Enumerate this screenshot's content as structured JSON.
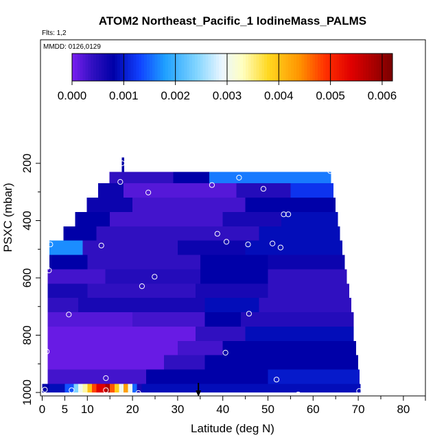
{
  "chart_data": {
    "type": "heatmap",
    "title": "ATOM2 Northeast_Pacific_1 IodineMass_PALMS",
    "annotations": [
      "Flts: 1,2",
      "MMDD: 0126,0129"
    ],
    "xlabel": "Latitude (deg N)",
    "ylabel": "PSXC (mbar)",
    "xlim": [
      0,
      85
    ],
    "ylim": [
      1000,
      80
    ],
    "x_ticks": [
      0,
      5,
      10,
      20,
      30,
      40,
      50,
      60,
      70,
      80
    ],
    "y_ticks": [
      200,
      400,
      600,
      800,
      1000
    ],
    "colorbar": {
      "range": [
        0,
        0.0062
      ],
      "ticks": [
        "0.000",
        "0.001",
        "0.002",
        "0.003",
        "0.004",
        "0.005",
        "0.006"
      ],
      "tick_values": [
        0,
        0.001,
        0.002,
        0.003,
        0.004,
        0.005,
        0.006
      ],
      "stops": [
        {
          "v": 0.0,
          "c": "#7a1ff0"
        },
        {
          "v": 0.0004,
          "c": "#3010c0"
        },
        {
          "v": 0.0008,
          "c": "#0000a8"
        },
        {
          "v": 0.0013,
          "c": "#1040ff"
        },
        {
          "v": 0.0018,
          "c": "#1ea0ff"
        },
        {
          "v": 0.0024,
          "c": "#80d4ff"
        },
        {
          "v": 0.0029,
          "c": "#eaf6ff"
        },
        {
          "v": 0.0033,
          "c": "#ffffc0"
        },
        {
          "v": 0.0038,
          "c": "#ffd820"
        },
        {
          "v": 0.0044,
          "c": "#ff9400"
        },
        {
          "v": 0.0049,
          "c": "#ff3000"
        },
        {
          "v": 0.0054,
          "c": "#e00000"
        },
        {
          "v": 0.0062,
          "c": "#7a0000"
        }
      ]
    },
    "bands": [
      {
        "p": [
          230,
          180
        ],
        "segs": [
          [
            17.6,
            18.2,
            0.0008
          ]
        ]
      },
      {
        "p": [
          270,
          230
        ],
        "segs": [
          [
            14.9,
            29,
            0.0004
          ],
          [
            29,
            37,
            0.0008
          ],
          [
            37,
            64,
            0.0016
          ]
        ]
      },
      {
        "p": [
          320,
          270
        ],
        "segs": [
          [
            12.4,
            18,
            0.0007
          ],
          [
            18,
            43,
            0.0002
          ],
          [
            43,
            55,
            0.0005
          ],
          [
            55,
            64.5,
            0.0012
          ]
        ]
      },
      {
        "p": [
          370,
          320
        ],
        "segs": [
          [
            9.9,
            20,
            0.0007
          ],
          [
            20,
            45,
            0.0003
          ],
          [
            45,
            65,
            0.0008
          ]
        ]
      },
      {
        "p": [
          420,
          370
        ],
        "segs": [
          [
            7.3,
            15,
            0.0008
          ],
          [
            15,
            40,
            0.0003
          ],
          [
            40,
            53,
            0.0006
          ],
          [
            53,
            65.5,
            0.0009
          ]
        ]
      },
      {
        "p": [
          470,
          420
        ],
        "segs": [
          [
            4.7,
            12,
            0.0008
          ],
          [
            12,
            48,
            0.0004
          ],
          [
            48,
            66,
            0.0009
          ]
        ]
      },
      {
        "p": [
          520,
          470
        ],
        "segs": [
          [
            1.6,
            9,
            0.0017
          ],
          [
            9,
            30,
            0.0004
          ],
          [
            30,
            45,
            0.0007
          ],
          [
            45,
            66.5,
            0.0009
          ]
        ]
      },
      {
        "p": [
          570,
          520
        ],
        "segs": [
          [
            1.6,
            10,
            0.0008
          ],
          [
            10,
            35,
            0.0004
          ],
          [
            35,
            50,
            0.0008
          ],
          [
            50,
            67,
            0.0007
          ]
        ]
      },
      {
        "p": [
          620,
          570
        ],
        "segs": [
          [
            1.2,
            14,
            0.0003
          ],
          [
            14,
            35,
            0.0005
          ],
          [
            35,
            50,
            0.0008
          ],
          [
            50,
            67.5,
            0.0004
          ]
        ]
      },
      {
        "p": [
          670,
          620
        ],
        "segs": [
          [
            1.2,
            10,
            0.0006
          ],
          [
            10,
            34,
            0.0004
          ],
          [
            34,
            50,
            0.0006
          ],
          [
            50,
            68,
            0.0004
          ]
        ]
      },
      {
        "p": [
          720,
          670
        ],
        "segs": [
          [
            1.2,
            8,
            0.0004
          ],
          [
            8,
            36,
            0.0006
          ],
          [
            36,
            48,
            0.0009
          ],
          [
            48,
            68.5,
            0.0004
          ]
        ]
      },
      {
        "p": [
          770,
          720
        ],
        "segs": [
          [
            1.2,
            20,
            0.0002
          ],
          [
            20,
            36,
            0.0003
          ],
          [
            36,
            44,
            0.0008
          ],
          [
            44,
            69,
            0.0005
          ]
        ]
      },
      {
        "p": [
          820,
          770
        ],
        "segs": [
          [
            1.2,
            34,
            0.0001
          ],
          [
            34,
            45,
            0.0004
          ],
          [
            45,
            69,
            0.0009
          ]
        ]
      },
      {
        "p": [
          870,
          820
        ],
        "segs": [
          [
            1.2,
            30,
            0.0001
          ],
          [
            30,
            40,
            0.0003
          ],
          [
            40,
            69.5,
            0.0008
          ]
        ]
      },
      {
        "p": [
          920,
          870
        ],
        "segs": [
          [
            1.2,
            27,
            0.0001
          ],
          [
            27,
            36,
            0.0004
          ],
          [
            36,
            70,
            0.0008
          ]
        ]
      },
      {
        "p": [
          970,
          920
        ],
        "segs": [
          [
            1.2,
            23,
            0.0003
          ],
          [
            23,
            50,
            0.0008
          ],
          [
            50,
            70.3,
            0.001
          ]
        ]
      },
      {
        "p": [
          1000,
          970
        ],
        "segs": [
          [
            0,
            1.5,
            0.0008
          ],
          [
            1.5,
            5,
            0.0009
          ],
          [
            5,
            7,
            0.0014
          ],
          [
            7,
            8,
            0.0024
          ],
          [
            8,
            9,
            0.003
          ],
          [
            9,
            10,
            0.0034
          ],
          [
            10,
            11,
            0.004
          ],
          [
            11,
            12,
            0.0048
          ],
          [
            12,
            14,
            0.0054
          ],
          [
            14,
            15,
            0.0058
          ],
          [
            15,
            16,
            0.0047
          ],
          [
            16,
            17,
            0.0039
          ],
          [
            17,
            18,
            0.003
          ],
          [
            18,
            19,
            0.0043
          ],
          [
            19,
            20,
            0.003
          ],
          [
            20,
            21,
            0.0015
          ],
          [
            21,
            22,
            0.0006
          ],
          [
            22,
            70.5,
            0.0009
          ]
        ]
      }
    ],
    "points": [
      {
        "x": 17.7,
        "y": 200
      },
      {
        "x": 17.3,
        "y": 265
      },
      {
        "x": 23.5,
        "y": 302
      },
      {
        "x": 37.6,
        "y": 276
      },
      {
        "x": 43.6,
        "y": 250
      },
      {
        "x": 49.0,
        "y": 289
      },
      {
        "x": 63.8,
        "y": 227
      },
      {
        "x": 53.5,
        "y": 378
      },
      {
        "x": 54.5,
        "y": 378
      },
      {
        "x": 38.8,
        "y": 446
      },
      {
        "x": 40.8,
        "y": 474
      },
      {
        "x": 45.6,
        "y": 483
      },
      {
        "x": 51.0,
        "y": 480
      },
      {
        "x": 52.8,
        "y": 494
      },
      {
        "x": 13.1,
        "y": 487
      },
      {
        "x": 1.8,
        "y": 483
      },
      {
        "x": 1.5,
        "y": 574
      },
      {
        "x": 24.9,
        "y": 596
      },
      {
        "x": 22.1,
        "y": 629
      },
      {
        "x": 5.9,
        "y": 728
      },
      {
        "x": 45.8,
        "y": 725
      },
      {
        "x": 40.6,
        "y": 861
      },
      {
        "x": 1.0,
        "y": 857
      },
      {
        "x": 14.1,
        "y": 950
      },
      {
        "x": 51.9,
        "y": 955
      },
      {
        "x": 0.6,
        "y": 990
      },
      {
        "x": 6.5,
        "y": 992
      },
      {
        "x": 14.1,
        "y": 992
      },
      {
        "x": 21.3,
        "y": 1002
      },
      {
        "x": 46.3,
        "y": 1012
      },
      {
        "x": 52.0,
        "y": 1012
      },
      {
        "x": 56.7,
        "y": 1007
      },
      {
        "x": 70.2,
        "y": 995
      }
    ],
    "marker": {
      "x": 34.6,
      "y": 1000,
      "shape": "down-arrow"
    }
  }
}
